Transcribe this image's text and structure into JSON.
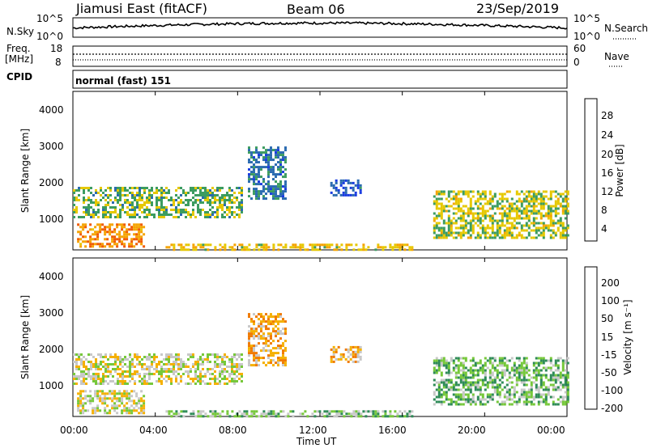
{
  "header": {
    "station": "Jiamusi East (fitACF)",
    "beam": "Beam 06",
    "date": "23/Sep/2019"
  },
  "noise_panel": {
    "left_label": "N.Sky",
    "right_label": "N.Search",
    "left_ticks": [
      "10^5",
      "10^0"
    ],
    "right_ticks": [
      "10^5",
      "10^0"
    ]
  },
  "freq_panel": {
    "left_label_1": "Freq.",
    "left_label_2": "[MHz]",
    "right_label": "Nave",
    "left_ticks": [
      "18",
      "8"
    ],
    "right_ticks": [
      "60",
      "0"
    ]
  },
  "cpid": {
    "label": "CPID",
    "value": "normal (fast) 151"
  },
  "x_axis": {
    "ticks": [
      "00:00",
      "04:00",
      "08:00",
      "12:00",
      "16:00",
      "20:00",
      "00:00"
    ],
    "label": "Time UT"
  },
  "power_panel": {
    "y_label": "Slant Range [km]",
    "y_ticks": [
      "4000",
      "3000",
      "2000",
      "1000"
    ],
    "cbar_label": "Power [dB]",
    "cbar_ticks": [
      "28",
      "24",
      "20",
      "16",
      "12",
      "8",
      "4"
    ],
    "cbar_colors": [
      "#e60000",
      "#f05a00",
      "#f5a300",
      "#e6c800",
      "#3c9c60",
      "#2a6ab0",
      "#1a3ce0",
      "#0a10ff"
    ]
  },
  "velocity_panel": {
    "y_label": "Slant Range [km]",
    "y_ticks": [
      "4000",
      "3000",
      "2000",
      "1000"
    ],
    "cbar_label": "Velocity [m s⁻¹]",
    "cbar_ticks": [
      "200",
      "100",
      "50",
      "15",
      "-15",
      "-50",
      "-100",
      "-200"
    ],
    "cbar_colors": [
      "#2030c0",
      "#3060a0",
      "#2e8b57",
      "#76c83a",
      "#c8c8c8",
      "#f5b000",
      "#f07a00",
      "#e84000",
      "#e00000"
    ]
  },
  "chart_data": [
    {
      "type": "heatmap",
      "title": "Power",
      "xlabel": "Time UT",
      "ylabel": "Slant Range [km]",
      "x_ticks": [
        "00:00",
        "04:00",
        "08:00",
        "12:00",
        "16:00",
        "20:00",
        "00:00"
      ],
      "ylim": [
        180,
        4500
      ],
      "clim": [
        0,
        30
      ],
      "echo_regions": [
        {
          "t0": 0.0,
          "t1": 8.2,
          "r0": 1100,
          "r1": 1900,
          "value": 14
        },
        {
          "t0": 0.2,
          "t1": 3.5,
          "r0": 300,
          "r1": 900,
          "value": 22
        },
        {
          "t0": 8.5,
          "t1": 10.3,
          "r0": 1600,
          "r1": 3000,
          "value": 10
        },
        {
          "t0": 12.5,
          "t1": 14.0,
          "r0": 1700,
          "r1": 2100,
          "value": 8
        },
        {
          "t0": 17.5,
          "t1": 24.0,
          "r0": 500,
          "r1": 1800,
          "value": 16
        },
        {
          "t0": 4.5,
          "t1": 16.5,
          "r0": 200,
          "r1": 350,
          "value": 18
        }
      ]
    },
    {
      "type": "heatmap",
      "title": "Velocity",
      "xlabel": "Time UT",
      "ylabel": "Slant Range [km]",
      "x_ticks": [
        "00:00",
        "04:00",
        "08:00",
        "12:00",
        "16:00",
        "20:00",
        "00:00"
      ],
      "ylim": [
        180,
        4500
      ],
      "clim": [
        -200,
        200
      ],
      "echo_regions": [
        {
          "t0": 0.0,
          "t1": 8.2,
          "r0": 1100,
          "r1": 1900,
          "value": 0
        },
        {
          "t0": 0.2,
          "t1": 3.5,
          "r0": 300,
          "r1": 900,
          "value": 0
        },
        {
          "t0": 8.5,
          "t1": 10.3,
          "r0": 1600,
          "r1": 3000,
          "value": -40
        },
        {
          "t0": 12.5,
          "t1": 14.0,
          "r0": 1700,
          "r1": 2100,
          "value": -30
        },
        {
          "t0": 17.5,
          "t1": 24.0,
          "r0": 500,
          "r1": 1800,
          "value": 40
        },
        {
          "t0": 4.5,
          "t1": 16.5,
          "r0": 200,
          "r1": 350,
          "value": 30
        }
      ]
    }
  ]
}
